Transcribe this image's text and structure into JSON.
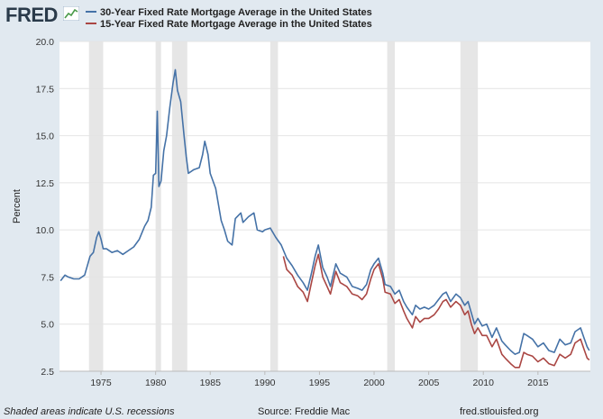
{
  "header": {
    "logo_text": "FRED",
    "logo_icon": "fred-chart-icon"
  },
  "chart_data": {
    "type": "line",
    "title": "",
    "xlabel": "",
    "ylabel": "Percent",
    "xlim": [
      1971.2,
      2019.8
    ],
    "ylim": [
      2.5,
      20.0
    ],
    "yticks": [
      "2.5",
      "5.0",
      "7.5",
      "10.0",
      "12.5",
      "15.0",
      "17.5",
      "20.0"
    ],
    "xticks": [
      "1975",
      "1980",
      "1985",
      "1990",
      "1995",
      "2000",
      "2005",
      "2010",
      "2015"
    ],
    "grid": true,
    "legend_position": "top",
    "recessions": [
      [
        1973.9,
        1975.2
      ],
      [
        1980.0,
        1980.5
      ],
      [
        1981.5,
        1982.9
      ],
      [
        1990.5,
        1991.2
      ],
      [
        2001.2,
        2001.9
      ],
      [
        2007.9,
        2009.5
      ]
    ],
    "series": [
      {
        "name": "30-Year Fixed Rate Mortgage Average in the United States",
        "color": "#4572a7",
        "x": [
          1971.3,
          1971.7,
          1972.0,
          1972.5,
          1973.0,
          1973.5,
          1973.8,
          1974.0,
          1974.3,
          1974.6,
          1974.8,
          1975.0,
          1975.2,
          1975.5,
          1976.0,
          1976.5,
          1977.0,
          1977.5,
          1978.0,
          1978.5,
          1979.0,
          1979.3,
          1979.6,
          1979.8,
          1980.0,
          1980.15,
          1980.3,
          1980.5,
          1980.75,
          1981.0,
          1981.3,
          1981.6,
          1981.8,
          1982.0,
          1982.3,
          1982.6,
          1982.8,
          1983.0,
          1983.5,
          1984.0,
          1984.3,
          1984.5,
          1984.8,
          1985.0,
          1985.5,
          1986.0,
          1986.3,
          1986.6,
          1987.0,
          1987.3,
          1987.8,
          1988.0,
          1988.5,
          1989.0,
          1989.3,
          1989.8,
          1990.0,
          1990.5,
          1991.0,
          1991.5,
          1992.0,
          1992.5,
          1993.0,
          1993.5,
          1993.9,
          1994.3,
          1994.6,
          1994.9,
          1995.3,
          1995.7,
          1996.0,
          1996.5,
          1996.9,
          1997.5,
          1998.0,
          1998.5,
          1998.9,
          1999.3,
          1999.7,
          2000.0,
          2000.4,
          2000.8,
          2001.0,
          2001.5,
          2001.9,
          2002.3,
          2002.7,
          2003.0,
          2003.5,
          2003.8,
          2004.2,
          2004.6,
          2005.0,
          2005.5,
          2005.9,
          2006.3,
          2006.6,
          2007.0,
          2007.5,
          2007.9,
          2008.3,
          2008.6,
          2008.9,
          2009.2,
          2009.5,
          2009.9,
          2010.3,
          2010.8,
          2011.2,
          2011.7,
          2012.0,
          2012.5,
          2012.9,
          2013.3,
          2013.7,
          2014.0,
          2014.5,
          2015.0,
          2015.5,
          2016.0,
          2016.5,
          2017.0,
          2017.5,
          2018.0,
          2018.4,
          2018.9,
          2019.2,
          2019.5,
          2019.7
        ],
        "values": [
          7.3,
          7.6,
          7.5,
          7.4,
          7.4,
          7.6,
          8.2,
          8.6,
          8.8,
          9.6,
          9.9,
          9.5,
          9.0,
          9.0,
          8.8,
          8.9,
          8.7,
          8.9,
          9.1,
          9.5,
          10.2,
          10.5,
          11.2,
          12.9,
          13.0,
          16.3,
          12.3,
          12.6,
          14.2,
          15.0,
          16.5,
          17.8,
          18.5,
          17.4,
          16.8,
          15.0,
          13.9,
          13.0,
          13.2,
          13.3,
          14.0,
          14.7,
          14.0,
          13.0,
          12.2,
          10.5,
          10.0,
          9.4,
          9.2,
          10.6,
          10.9,
          10.4,
          10.7,
          10.9,
          10.0,
          9.9,
          10.0,
          10.1,
          9.6,
          9.2,
          8.5,
          8.1,
          7.6,
          7.2,
          6.8,
          7.8,
          8.6,
          9.2,
          8.0,
          7.5,
          7.0,
          8.2,
          7.7,
          7.5,
          7.0,
          6.9,
          6.8,
          7.1,
          7.9,
          8.2,
          8.5,
          7.7,
          7.1,
          7.0,
          6.6,
          6.8,
          6.2,
          5.9,
          5.5,
          6.0,
          5.8,
          5.9,
          5.8,
          6.0,
          6.3,
          6.6,
          6.7,
          6.2,
          6.6,
          6.4,
          6.0,
          6.2,
          5.6,
          5.0,
          5.3,
          4.9,
          5.0,
          4.3,
          4.8,
          4.1,
          3.9,
          3.6,
          3.4,
          3.5,
          4.5,
          4.4,
          4.2,
          3.8,
          4.0,
          3.6,
          3.5,
          4.2,
          3.9,
          4.0,
          4.6,
          4.8,
          4.3,
          3.8,
          3.6
        ]
      },
      {
        "name": "15-Year Fixed Rate Mortgage Average in the United States",
        "color": "#aa4643",
        "x": [
          1991.7,
          1992.0,
          1992.5,
          1993.0,
          1993.5,
          1993.9,
          1994.3,
          1994.6,
          1994.9,
          1995.3,
          1995.7,
          1996.0,
          1996.5,
          1996.9,
          1997.5,
          1998.0,
          1998.5,
          1998.9,
          1999.3,
          1999.7,
          2000.0,
          2000.4,
          2000.8,
          2001.0,
          2001.5,
          2001.9,
          2002.3,
          2002.7,
          2003.0,
          2003.5,
          2003.8,
          2004.2,
          2004.6,
          2005.0,
          2005.5,
          2005.9,
          2006.3,
          2006.6,
          2007.0,
          2007.5,
          2007.9,
          2008.3,
          2008.6,
          2008.9,
          2009.2,
          2009.5,
          2009.9,
          2010.3,
          2010.8,
          2011.2,
          2011.7,
          2012.0,
          2012.5,
          2012.9,
          2013.3,
          2013.7,
          2014.0,
          2014.5,
          2015.0,
          2015.5,
          2016.0,
          2016.5,
          2017.0,
          2017.5,
          2018.0,
          2018.4,
          2018.9,
          2019.2,
          2019.5,
          2019.7
        ],
        "values": [
          8.6,
          7.9,
          7.6,
          7.0,
          6.7,
          6.2,
          7.3,
          8.1,
          8.7,
          7.5,
          7.0,
          6.6,
          7.8,
          7.2,
          7.0,
          6.6,
          6.5,
          6.3,
          6.6,
          7.4,
          7.9,
          8.2,
          7.4,
          6.7,
          6.6,
          6.1,
          6.3,
          5.7,
          5.3,
          4.8,
          5.4,
          5.1,
          5.3,
          5.3,
          5.5,
          5.8,
          6.2,
          6.3,
          5.9,
          6.2,
          6.0,
          5.5,
          5.7,
          5.0,
          4.5,
          4.8,
          4.4,
          4.4,
          3.8,
          4.2,
          3.4,
          3.2,
          2.9,
          2.7,
          2.7,
          3.5,
          3.4,
          3.3,
          3.0,
          3.2,
          2.9,
          2.8,
          3.4,
          3.2,
          3.4,
          4.0,
          4.2,
          3.7,
          3.2,
          3.1
        ]
      }
    ]
  },
  "footer": {
    "note": "Shaded areas indicate U.S. recessions",
    "source": "Source: Freddie Mac",
    "url": "fred.stlouisfed.org"
  }
}
